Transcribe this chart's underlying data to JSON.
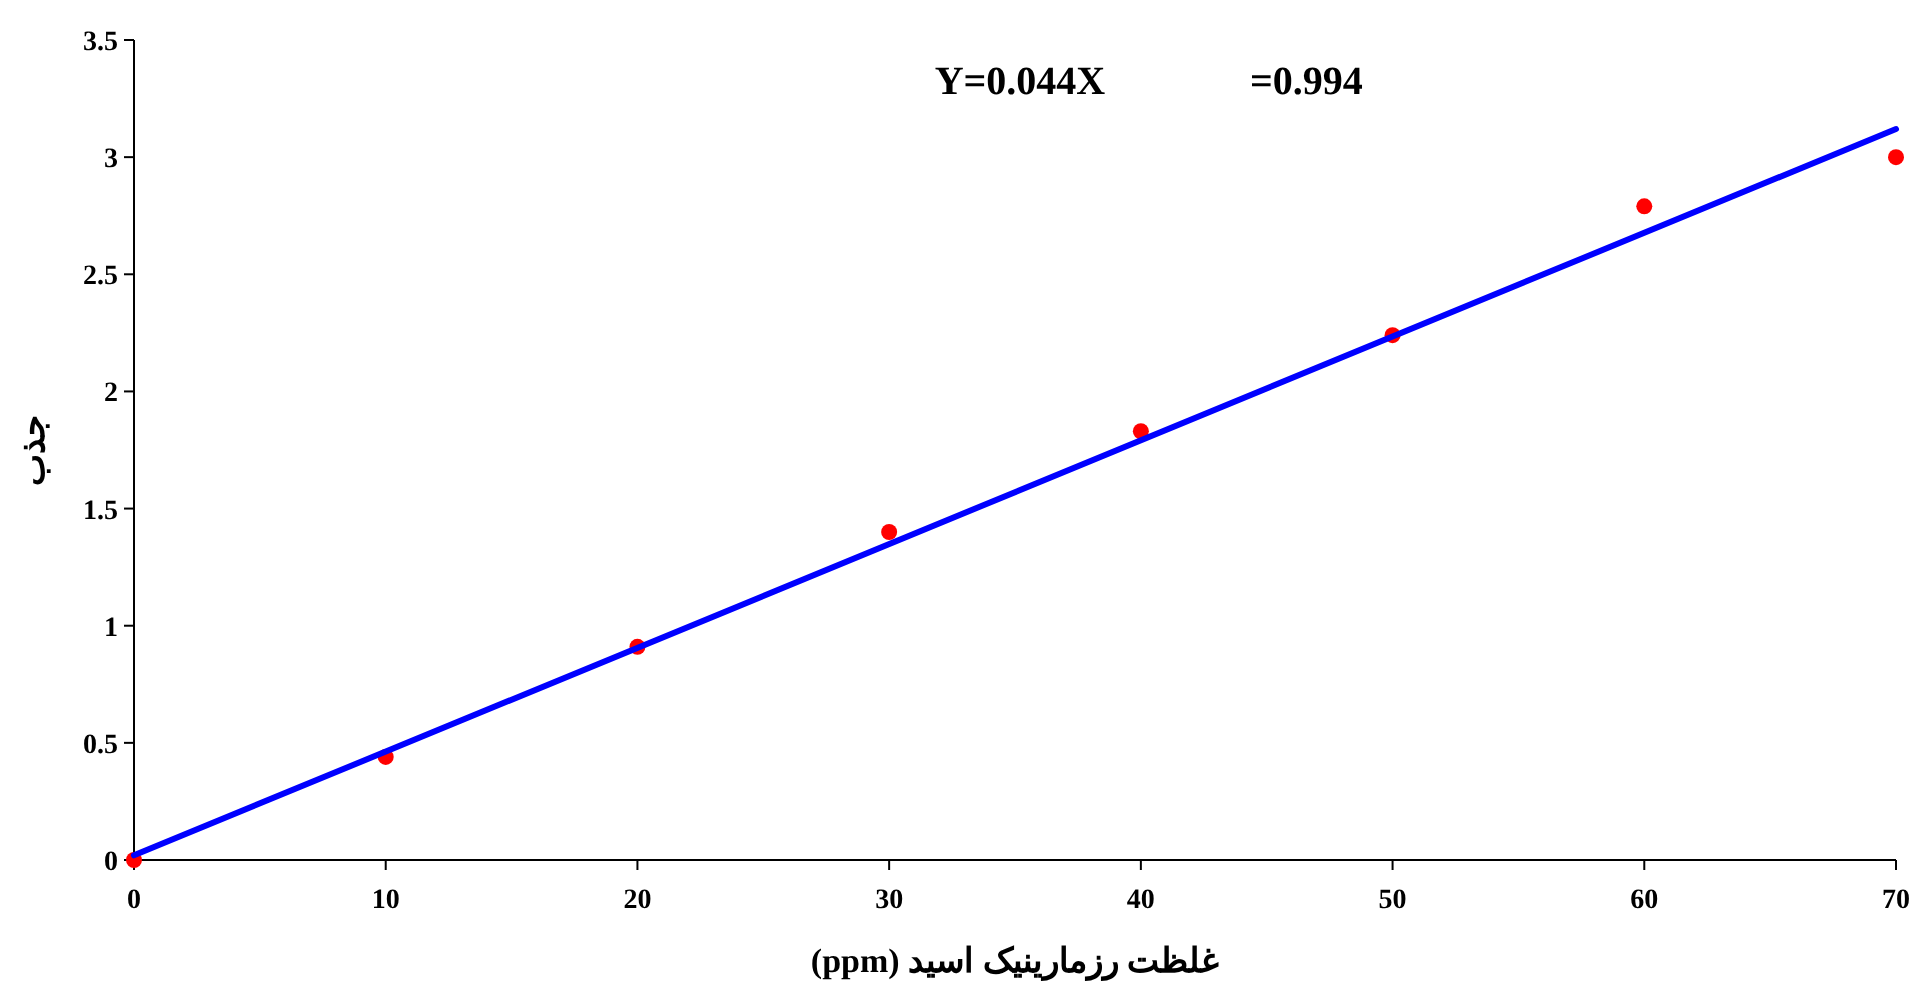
{
  "chart_data": {
    "type": "scatter",
    "xlabel": "غلظت رزمارینیک اسید (ppm)",
    "ylabel": "جذب",
    "annotations": [
      "Y=0.044X",
      "=0.994"
    ],
    "x": [
      0,
      10,
      20,
      30,
      40,
      50,
      60,
      70
    ],
    "series": [
      {
        "color": "#ff0000",
        "marker": "circle",
        "values": [
          0,
          0.44,
          0.91,
          1.4,
          1.83,
          2.24,
          2.79,
          3.0
        ]
      },
      {
        "type": "line",
        "color": "#0000ff",
        "marker": "none",
        "line_style": "solid",
        "x": [
          0,
          70
        ],
        "values": [
          0.02,
          3.12
        ]
      }
    ],
    "xlim": [
      0,
      70
    ],
    "ylim": [
      0,
      3.5
    ],
    "xticks": [
      0,
      10,
      20,
      30,
      40,
      50,
      60,
      70
    ],
    "yticks": [
      0,
      0.5,
      1,
      1.5,
      2,
      2.5,
      3,
      3.5
    ],
    "grid": false
  }
}
